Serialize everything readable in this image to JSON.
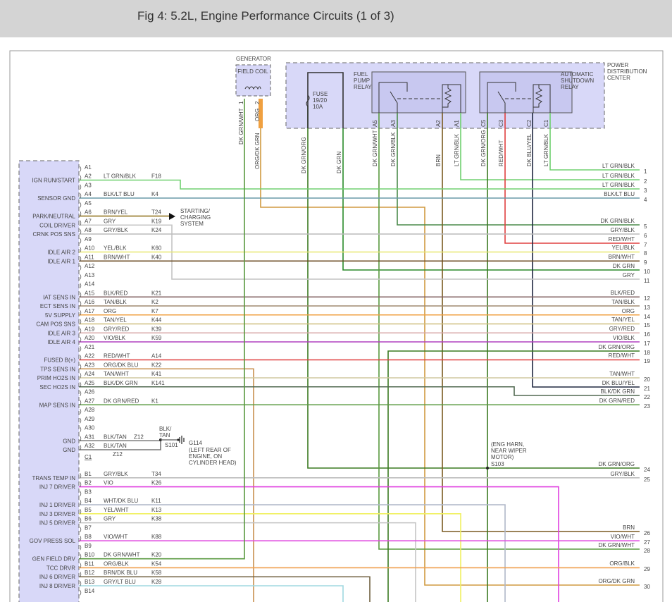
{
  "header": {
    "title": "Fig 4: 5.2L, Engine Performance Circuits (1 of 3)"
  },
  "wire_colors": {
    "LT GRN/BLK": "#70d070",
    "BLK/LT BLU": "#6a9aa8",
    "BRN/YEL": "#8a6a10",
    "GRY": "#c4c4c4",
    "GRY/BLK": "#bcbcbc",
    "YEL/BLK": "#e8e870",
    "BRN/WHT": "#6a4a20",
    "BLK/RED": "#806060",
    "TAN/BLK": "#a08a70",
    "ORG": "#f0a040",
    "TAN/YEL": "#d0c080",
    "GRY/RED": "#d8a8a8",
    "VIO/BLK": "#b040c0",
    "RED/WHT": "#e04040",
    "ORG/DK BLU": "#c89050",
    "TAN/WHT": "#d0c8a0",
    "BLK/DK GRN": "#506850",
    "DK GRN/RED": "#5a9a40",
    "VIO": "#e040e0",
    "WHT/DK BLU": "#b0b8c8",
    "YEL/WHT": "#f0f060",
    "VIO/WHT": "#e050e0",
    "DK GRN/WHT": "#5a9a40",
    "ORG/BLK": "#f0a050",
    "BRN/DK BLU": "#706040",
    "GRY/LT BLU": "#a0d8e0",
    "DK GRN/ORG": "#3a7a20",
    "DK GRN": "#2a8a2a",
    "DK GRN/BLK": "#4a8a4a",
    "BRN": "#7a5a20",
    "DK BLU/YEL": "#202840",
    "ORG/DK GRN": "#d09a40",
    "BLK/TAN": "#777777"
  },
  "pcm": {
    "pins": [
      {
        "pin": "A1",
        "func": "",
        "wire": "",
        "circuit": ""
      },
      {
        "pin": "A2",
        "func": "IGN RUN/START",
        "wire": "LT GRN/BLK",
        "circuit": "F18"
      },
      {
        "pin": "A3",
        "func": "",
        "wire": "",
        "circuit": ""
      },
      {
        "pin": "A4",
        "func": "SENSOR GND",
        "wire": "BLK/LT BLU",
        "circuit": "K4"
      },
      {
        "pin": "A5",
        "func": "",
        "wire": "",
        "circuit": ""
      },
      {
        "pin": "A6",
        "func": "PARK/NEUTRAL",
        "wire": "BRN/YEL",
        "circuit": "T24"
      },
      {
        "pin": "A7",
        "func": "COIL DRIVER",
        "wire": "GRY",
        "circuit": "K19"
      },
      {
        "pin": "A8",
        "func": "CRNK POS SNS",
        "wire": "GRY/BLK",
        "circuit": "K24"
      },
      {
        "pin": "A9",
        "func": "",
        "wire": "",
        "circuit": ""
      },
      {
        "pin": "A10",
        "func": "IDLE AIR 2",
        "wire": "YEL/BLK",
        "circuit": "K60"
      },
      {
        "pin": "A11",
        "func": "IDLE AIR 1",
        "wire": "BRN/WHT",
        "circuit": "K40"
      },
      {
        "pin": "A12",
        "func": "",
        "wire": "",
        "circuit": ""
      },
      {
        "pin": "A13",
        "func": "",
        "wire": "",
        "circuit": ""
      },
      {
        "pin": "A14",
        "func": "",
        "wire": "",
        "circuit": ""
      },
      {
        "pin": "A15",
        "func": "IAT SENS IN",
        "wire": "BLK/RED",
        "circuit": "K21"
      },
      {
        "pin": "A16",
        "func": "ECT SENS IN",
        "wire": "TAN/BLK",
        "circuit": "K2"
      },
      {
        "pin": "A17",
        "func": "5V SUPPLY",
        "wire": "ORG",
        "circuit": "K7"
      },
      {
        "pin": "A18",
        "func": "CAM POS SNS",
        "wire": "TAN/YEL",
        "circuit": "K44"
      },
      {
        "pin": "A19",
        "func": "IDLE AIR 3",
        "wire": "GRY/RED",
        "circuit": "K39"
      },
      {
        "pin": "A20",
        "func": "IDLE AIR 4",
        "wire": "VIO/BLK",
        "circuit": "K59"
      },
      {
        "pin": "A21",
        "func": "",
        "wire": "",
        "circuit": ""
      },
      {
        "pin": "A22",
        "func": "FUSED B(+)",
        "wire": "RED/WHT",
        "circuit": "A14"
      },
      {
        "pin": "A23",
        "func": "TPS SENS IN",
        "wire": "ORG/DK BLU",
        "circuit": "K22"
      },
      {
        "pin": "A24",
        "func": "PRIM HO2S IN",
        "wire": "TAN/WHT",
        "circuit": "K41"
      },
      {
        "pin": "A25",
        "func": "SEC HO2S IN",
        "wire": "BLK/DK GRN",
        "circuit": "K141"
      },
      {
        "pin": "A26",
        "func": "",
        "wire": "",
        "circuit": ""
      },
      {
        "pin": "A27",
        "func": "MAP SENS IN",
        "wire": "DK GRN/RED",
        "circuit": "K1"
      },
      {
        "pin": "A28",
        "func": "",
        "wire": "",
        "circuit": ""
      },
      {
        "pin": "A29",
        "func": "",
        "wire": "",
        "circuit": ""
      },
      {
        "pin": "A30",
        "func": "",
        "wire": "",
        "circuit": ""
      },
      {
        "pin": "A31",
        "func": "GND",
        "wire": "BLK/TAN",
        "circuit": "Z12"
      },
      {
        "pin": "A32",
        "func": "GND",
        "wire": "BLK/TAN",
        "circuit": ""
      },
      {
        "pin": "B1",
        "func": "TRANS TEMP IN",
        "wire": "GRY/BLK",
        "circuit": "T34"
      },
      {
        "pin": "B2",
        "func": "INJ 7 DRIVER",
        "wire": "VIO",
        "circuit": "K26"
      },
      {
        "pin": "B3",
        "func": "",
        "wire": "",
        "circuit": ""
      },
      {
        "pin": "B4",
        "func": "INJ 1 DRIVER",
        "wire": "WHT/DK BLU",
        "circuit": "K11"
      },
      {
        "pin": "B5",
        "func": "INJ 3 DRIVER",
        "wire": "YEL/WHT",
        "circuit": "K13"
      },
      {
        "pin": "B6",
        "func": "INJ 5 DRIVER",
        "wire": "GRY",
        "circuit": "K38"
      },
      {
        "pin": "B7",
        "func": "",
        "wire": "",
        "circuit": ""
      },
      {
        "pin": "B8",
        "func": "GOV PRESS SOL",
        "wire": "VIO/WHT",
        "circuit": "K88"
      },
      {
        "pin": "B9",
        "func": "",
        "wire": "",
        "circuit": ""
      },
      {
        "pin": "B10",
        "func": "GEN FIELD DRV",
        "wire": "DK GRN/WHT",
        "circuit": "K20"
      },
      {
        "pin": "B11",
        "func": "TCC DRVR",
        "wire": "ORG/BLK",
        "circuit": "K54"
      },
      {
        "pin": "B12",
        "func": "INJ 6 DRIVER",
        "wire": "BRN/DK BLU",
        "circuit": "K58"
      },
      {
        "pin": "B13",
        "func": "INJ 8 DRIVER",
        "wire": "GRY/LT BLU",
        "circuit": "K28"
      },
      {
        "pin": "B14",
        "func": "",
        "wire": "",
        "circuit": ""
      }
    ],
    "connector_c1": "C1",
    "a32_circuit": "Z12"
  },
  "outputs": [
    {
      "num": "1",
      "label": "LT GRN/BLK"
    },
    {
      "num": "2",
      "label": "LT GRN/BLK"
    },
    {
      "num": "3",
      "label": "LT GRN/BLK"
    },
    {
      "num": "4",
      "label": "BLK/LT BLU"
    },
    {
      "num": "5",
      "label": "DK GRN/BLK"
    },
    {
      "num": "6",
      "label": "GRY/BLK"
    },
    {
      "num": "7",
      "label": "RED/WHT"
    },
    {
      "num": "8",
      "label": "YEL/BLK"
    },
    {
      "num": "9",
      "label": "BRN/WHT"
    },
    {
      "num": "10",
      "label": "DK GRN"
    },
    {
      "num": "11",
      "label": "GRY"
    },
    {
      "num": "12",
      "label": "BLK/RED"
    },
    {
      "num": "13",
      "label": "TAN/BLK"
    },
    {
      "num": "14",
      "label": "ORG"
    },
    {
      "num": "15",
      "label": "TAN/YEL"
    },
    {
      "num": "16",
      "label": "GRY/RED"
    },
    {
      "num": "17",
      "label": "VIO/BLK"
    },
    {
      "num": "18",
      "label": "DK GRN/ORG"
    },
    {
      "num": "19",
      "label": "RED/WHT"
    },
    {
      "num": "20",
      "label": "TAN/WHT"
    },
    {
      "num": "21",
      "label": "DK BLU/YEL"
    },
    {
      "num": "22",
      "label": "BLK/DK GRN"
    },
    {
      "num": "23",
      "label": "DK GRN/RED"
    },
    {
      "num": "24",
      "label": "DK GRN/ORG"
    },
    {
      "num": "25",
      "label": "GRY/BLK"
    },
    {
      "num": "26",
      "label": "BRN"
    },
    {
      "num": "27",
      "label": "VIO/WHT"
    },
    {
      "num": "28",
      "label": "DK GRN/WHT"
    },
    {
      "num": "29",
      "label": "ORG/BLK"
    },
    {
      "num": "30",
      "label": "ORG/DK GRN"
    }
  ],
  "starting_charging": "STARTING/ CHARGING SYSTEM",
  "ground": {
    "splice": "S101",
    "wire": "BLK/ TAN",
    "id": "G114",
    "location": "(LEFT REAR OF ENGINE, ON CYLINDER HEAD)"
  },
  "splice_s103": {
    "location": "(ENG HARN, NEAR WIPER MOTOR)",
    "id": "S103"
  },
  "generator": {
    "title": "GENERATOR",
    "box": "FIELD COIL",
    "pin1": "1",
    "pin2": "2",
    "wire1": "DK GRN/WHT",
    "wire2": "ORG",
    "wire2_out": "ORG/DK GRN"
  },
  "pdc": {
    "title": "POWER DISTRIBUTION CENTER",
    "fuse": "FUSE 19/20 10A",
    "fuel_pump_relay": "FUEL PUMP RELAY",
    "asd_relay": "AUTOMATIC SHUTDOWN RELAY",
    "terminals": [
      {
        "pin": "",
        "wire": "DK GRN/ORG"
      },
      {
        "pin": "",
        "wire": "DK GRN"
      },
      {
        "pin": "A5",
        "wire": "DK GRN/WHT"
      },
      {
        "pin": "A3",
        "wire": "DK GRN/BLK"
      },
      {
        "pin": "A2",
        "wire": "BRN"
      },
      {
        "pin": "A1",
        "wire": "LT GRN/BLK"
      },
      {
        "pin": "C5",
        "wire": "DK GRN/ORG"
      },
      {
        "pin": "C3",
        "wire": "RED/WHT"
      },
      {
        "pin": "C2",
        "wire": "DK BLU/YEL"
      },
      {
        "pin": "C1",
        "wire": "LT GRN/BLK"
      }
    ]
  }
}
